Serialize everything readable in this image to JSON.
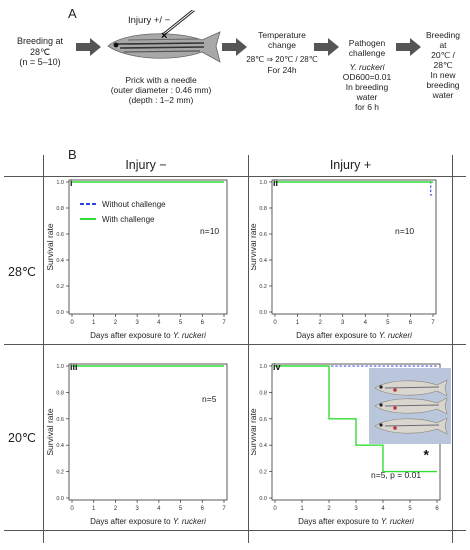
{
  "panelA": {
    "letter": "A",
    "breeding": [
      "Breeding at",
      "28℃",
      "(n = 5–10)"
    ],
    "injury_label": "Injury +/ −",
    "prick": [
      "Prick with a needle",
      "(outer diameter : 0.46 mm)",
      "(depth : 1–2 mm)"
    ],
    "temp": [
      "Temperature",
      "change",
      "28℃ ⇒ 20℃ / 28℃",
      "For 24h"
    ],
    "pathogen": [
      "Pathogen",
      "challenge",
      "Y. ruckeri",
      "OD600=0.01",
      "In breeding",
      "water",
      "for 6 h"
    ],
    "final": [
      "Breeding",
      "at",
      "20℃ /",
      "28℃",
      "In new",
      "breeding",
      "water"
    ]
  },
  "panelB": {
    "letter": "B",
    "col_headers": [
      "Injury −",
      "Injury +"
    ],
    "row_labels": [
      "28℃",
      "20℃"
    ],
    "legend": {
      "dashed": "Without challenge",
      "solid": "With challenge"
    },
    "colors": {
      "dashed": "#3344dd",
      "solid": "#33dd33"
    },
    "xlabel": "Days after exposure to ",
    "xlabel_italic": "Y. ruckeri",
    "ylabel": "Survival rate",
    "panels": [
      {
        "id": "i",
        "note": "n=10"
      },
      {
        "id": "ii",
        "note": "n=10"
      },
      {
        "id": "iii",
        "note": "n=5"
      },
      {
        "id": "iv",
        "note": "n=5, p = 0.01",
        "star": "*"
      }
    ]
  },
  "chart_data": [
    {
      "type": "line",
      "panel": "i",
      "xlim": [
        0,
        7
      ],
      "ylim": [
        0,
        1
      ],
      "x_ticks": [
        0,
        1,
        2,
        3,
        4,
        5,
        6,
        7
      ],
      "y_ticks": [
        0.0,
        0.2,
        0.4,
        0.6,
        0.8,
        1.0
      ],
      "series": [
        {
          "name": "Without challenge",
          "x": [
            0,
            7
          ],
          "y": [
            1.0,
            1.0
          ]
        },
        {
          "name": "With challenge",
          "x": [
            0,
            7
          ],
          "y": [
            1.0,
            1.0
          ]
        }
      ]
    },
    {
      "type": "line",
      "panel": "ii",
      "xlim": [
        0,
        7
      ],
      "ylim": [
        0,
        1
      ],
      "x_ticks": [
        0,
        1,
        2,
        3,
        4,
        5,
        6,
        7
      ],
      "y_ticks": [
        0.0,
        0.2,
        0.4,
        0.6,
        0.8,
        1.0
      ],
      "series": [
        {
          "name": "Without challenge",
          "x": [
            0,
            6.9,
            6.9,
            7
          ],
          "y": [
            1.0,
            1.0,
            0.9,
            0.9
          ]
        },
        {
          "name": "With challenge",
          "x": [
            0,
            7
          ],
          "y": [
            1.0,
            1.0
          ]
        }
      ]
    },
    {
      "type": "line",
      "panel": "iii",
      "xlim": [
        0,
        7
      ],
      "ylim": [
        0,
        1
      ],
      "x_ticks": [
        0,
        1,
        2,
        3,
        4,
        5,
        6,
        7
      ],
      "y_ticks": [
        0.0,
        0.2,
        0.4,
        0.6,
        0.8,
        1.0
      ],
      "series": [
        {
          "name": "Without challenge",
          "x": [
            0,
            7
          ],
          "y": [
            1.0,
            1.0
          ]
        },
        {
          "name": "With challenge",
          "x": [
            0,
            7
          ],
          "y": [
            1.0,
            1.0
          ]
        }
      ]
    },
    {
      "type": "line",
      "panel": "iv",
      "xlim": [
        0,
        6
      ],
      "ylim": [
        0,
        1
      ],
      "x_ticks": [
        0,
        1,
        2,
        3,
        4,
        5,
        6
      ],
      "y_ticks": [
        0.0,
        0.2,
        0.4,
        0.6,
        0.8,
        1.0
      ],
      "series": [
        {
          "name": "Without challenge",
          "x": [
            0,
            6
          ],
          "y": [
            1.0,
            1.0
          ]
        },
        {
          "name": "With challenge",
          "x": [
            0,
            2,
            2,
            3,
            3,
            4,
            4,
            6
          ],
          "y": [
            1.0,
            1.0,
            0.6,
            0.6,
            0.4,
            0.4,
            0.2,
            0.2
          ]
        }
      ]
    }
  ]
}
